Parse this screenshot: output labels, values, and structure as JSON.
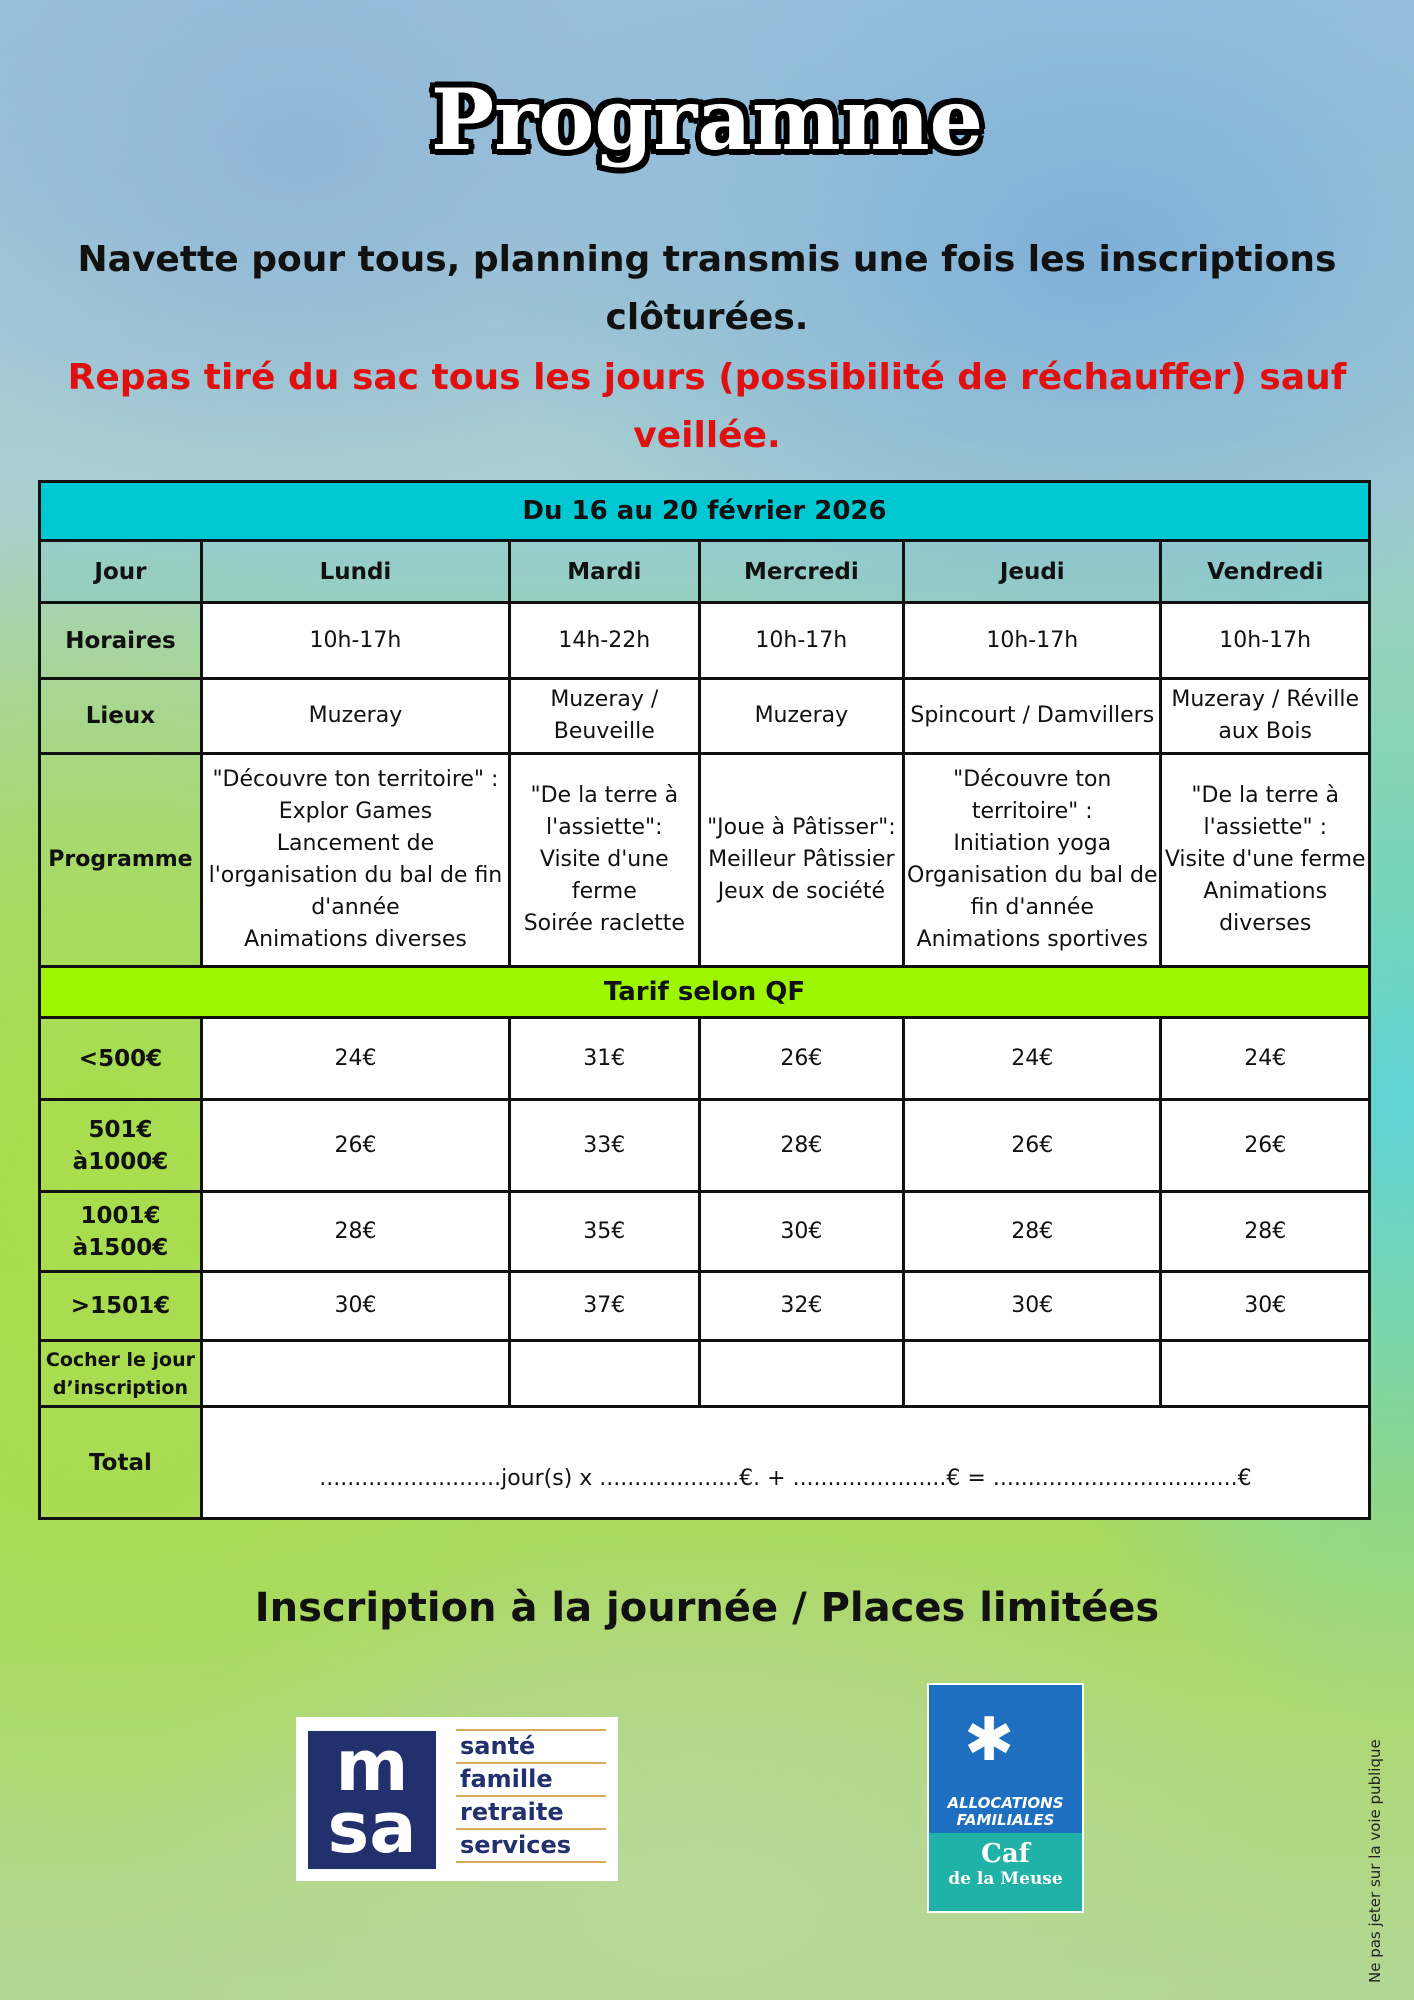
{
  "title": "Programme",
  "subtitle_line1": "Navette pour tous, planning transmis une fois les inscriptions clôturées.",
  "subtitle_line2": "Repas tiré du sac tous les jours (possibilité de réchauffer) sauf veillée.",
  "table": {
    "period": "Du 16 au 20 février 2026",
    "header": [
      "Jour",
      "Lundi",
      "Mardi",
      "Mercredi",
      "Jeudi",
      "Vendredi"
    ],
    "horaires": {
      "label": "Horaires",
      "values": [
        "10h-17h",
        "14h-22h",
        "10h-17h",
        "10h-17h",
        "10h-17h"
      ]
    },
    "lieux": {
      "label": "Lieux",
      "values": [
        "Muzeray",
        "Muzeray / Beuveille",
        "Muzeray",
        "Spincourt / Damvillers",
        "Muzeray / Réville aux Bois"
      ]
    },
    "programme": {
      "label": "Programme",
      "values": [
        "\"Découvre ton territoire\" :\nExplor Games\nLancement de\nl'organisation du bal de fin d'année\nAnimations diverses",
        "\"De la terre à l'assiette\":\nVisite d'une ferme\nSoirée raclette",
        "\"Joue à Pâtisser\":\nMeilleur Pâtissier\nJeux de société",
        "\"Découvre ton territoire\" :\nInitiation yoga\nOrganisation du bal de fin d'année\nAnimations sportives",
        "\"De la terre à l'assiette\" :\nVisite d'une ferme\nAnimations diverses"
      ]
    },
    "tarif_title": "Tarif selon QF",
    "tarifs": [
      {
        "label": "<500€",
        "values": [
          "24€",
          "31€",
          "26€",
          "24€",
          "24€"
        ]
      },
      {
        "label": "501€ à1000€",
        "values": [
          "26€",
          "33€",
          "28€",
          "26€",
          "26€"
        ]
      },
      {
        "label": "1001€ à1500€",
        "values": [
          "28€",
          "35€",
          "30€",
          "28€",
          "28€"
        ]
      },
      {
        "label": ">1501€",
        "values": [
          "30€",
          "37€",
          "32€",
          "30€",
          "30€"
        ]
      }
    ],
    "cocher_label": "Cocher le jour d’inscription",
    "total_label": "Total",
    "total_formula": "..........................jour(s) x ....................€. + ......................€ = ...................................€"
  },
  "inscription": "Inscription à la journée / Places limitées",
  "msa_logo": {
    "letters": "msa",
    "words": [
      "santé",
      "famille",
      "retraite",
      "services"
    ]
  },
  "caf_logo": {
    "line1": "ALLOCATIONS",
    "line2": "FAMILIALES",
    "caf": "Caf",
    "region": "de la Meuse"
  },
  "vertical_note": "Ne pas jeter sur la voie publique",
  "colors": {
    "banner_dates": "#00c8d2",
    "banner_tarif": "#9ef500",
    "red_text": "#e01010"
  }
}
